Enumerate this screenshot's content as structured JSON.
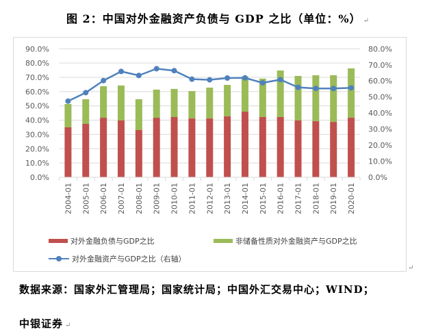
{
  "title": "图 2：中国对外金融资产负债与 GDP 之比（单位：%）",
  "para_mark": "↵",
  "source_line1": "数据来源：国家外汇管理局；国家统计局；中国外汇交易中心；WIND；",
  "source_line2": "中银证券",
  "colors": {
    "liabilities": "#C0504D",
    "non_reserve_assets": "#9BBB59",
    "assets_line": "#4F81BD",
    "grid": "#D9D9D9"
  },
  "chart_data": {
    "type": "bar",
    "subtype": "stacked bar + line (secondary axis)",
    "title": "中国对外金融资产负债与 GDP 之比（单位：%）",
    "categories": [
      "2004-01",
      "2005-01",
      "2006-01",
      "2007-01",
      "2008-01",
      "2009-01",
      "2010-01",
      "2011-01",
      "2012-01",
      "2013-01",
      "2014-01",
      "2015-01",
      "2016-01",
      "2017-01",
      "2018-01",
      "2019-01",
      "2020-01"
    ],
    "series": [
      {
        "name": "对外金融负债与GDP之比",
        "type": "bar",
        "axis": "left",
        "color": "#C0504D",
        "values": [
          35.0,
          37.4,
          41.7,
          39.8,
          33.1,
          41.7,
          42.2,
          41.2,
          41.2,
          42.7,
          46.0,
          42.2,
          42.2,
          39.8,
          39.3,
          38.8,
          41.7
        ]
      },
      {
        "name": "非储备性质对外金融资产与GDP之比",
        "type": "bar",
        "axis": "left",
        "stacked_on": "对外金融负债与GDP之比",
        "color": "#9BBB59",
        "values": [
          16.3,
          17.3,
          22.1,
          24.5,
          21.6,
          19.7,
          19.7,
          19.2,
          21.6,
          22.0,
          24.6,
          26.9,
          32.6,
          31.2,
          32.2,
          32.7,
          34.6
        ]
      },
      {
        "name": "对外金融资产与GDP之比（右轴）",
        "type": "line",
        "axis": "right",
        "color": "#4F81BD",
        "values": [
          47.4,
          52.7,
          60.2,
          65.9,
          63.4,
          67.6,
          66.4,
          61.1,
          60.7,
          61.8,
          61.9,
          58.8,
          60.8,
          56.0,
          55.3,
          55.3,
          55.7
        ]
      }
    ],
    "left_axis": {
      "range": [
        0,
        90
      ],
      "ticks": [
        "0.0%",
        "10.0%",
        "20.0%",
        "30.0%",
        "40.0%",
        "50.0%",
        "60.0%",
        "70.0%",
        "80.0%",
        "90.0%"
      ]
    },
    "right_axis": {
      "range": [
        0,
        80
      ],
      "ticks": [
        "0.0%",
        "10.0%",
        "20.0%",
        "30.0%",
        "40.0%",
        "50.0%",
        "60.0%",
        "70.0%",
        "80.0%"
      ]
    },
    "xlabel": "",
    "ylabel": "",
    "grid": true,
    "legend_position": "bottom"
  },
  "legend": [
    {
      "label": "对外金融负债与GDP之比",
      "kind": "bar",
      "color": "#C0504D"
    },
    {
      "label": "非储备性质对外金融资产与GDP之比",
      "kind": "bar",
      "color": "#9BBB59"
    },
    {
      "label": "对外金融资产与GDP之比（右轴）",
      "kind": "line",
      "color": "#4F81BD"
    }
  ]
}
